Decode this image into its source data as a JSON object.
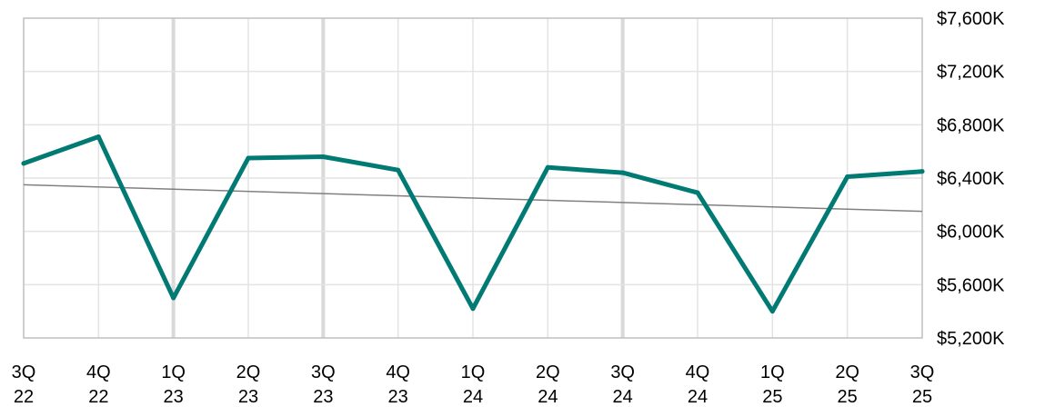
{
  "chart_data": {
    "type": "line",
    "title": "",
    "xlabel": "",
    "ylabel": "",
    "categories": [
      [
        "3Q",
        "22"
      ],
      [
        "4Q",
        "22"
      ],
      [
        "1Q",
        "23"
      ],
      [
        "2Q",
        "23"
      ],
      [
        "3Q",
        "23"
      ],
      [
        "4Q",
        "23"
      ],
      [
        "1Q",
        "24"
      ],
      [
        "2Q",
        "24"
      ],
      [
        "3Q",
        "24"
      ],
      [
        "4Q",
        "24"
      ],
      [
        "1Q",
        "25"
      ],
      [
        "2Q",
        "25"
      ],
      [
        "3Q",
        "25"
      ]
    ],
    "series": [
      {
        "values": [
          6510,
          6710,
          5500,
          6550,
          6560,
          6460,
          5420,
          6480,
          6440,
          6290,
          5400,
          6410,
          6450
        ],
        "color": "#007a73"
      }
    ],
    "trendline": {
      "values": [
        6350,
        6150
      ],
      "color": "#808080"
    },
    "y_axis": {
      "position": "right",
      "ticks": [
        7600,
        7200,
        6800,
        6400,
        6000,
        5600,
        5200
      ],
      "tick_labels": [
        "$7,600K",
        "$7,200K",
        "$6,800K",
        "$6,400K",
        "$6,000K",
        "$5,600K",
        "$5,200K"
      ]
    },
    "ylim": [
      5200,
      7600
    ],
    "grid": true,
    "emphasized_gridlines_at": [
      "1Q 23",
      "3Q 23",
      "3Q 24"
    ],
    "legend": "none"
  }
}
